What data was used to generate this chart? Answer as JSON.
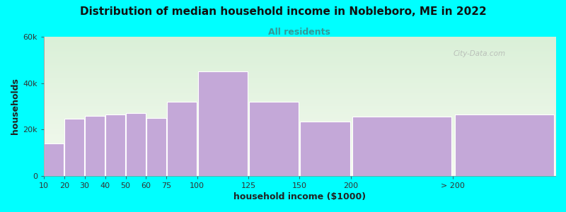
{
  "title": "Distribution of median household income in Nobleboro, ME in 2022",
  "subtitle": "All residents",
  "xlabel": "household income ($1000)",
  "ylabel": "households",
  "background_color": "#00FFFF",
  "plot_bg_gradient_top": "#daf0d8",
  "plot_bg_gradient_bottom": "#f5faf0",
  "bar_color": "#c4a8d8",
  "bar_edge_color": "#c4a8d8",
  "watermark": "City-Data.com",
  "categories": [
    "10",
    "20",
    "30",
    "40",
    "50",
    "60",
    "75",
    "100",
    "125",
    "150",
    "200",
    "> 200"
  ],
  "widths": [
    10,
    10,
    10,
    10,
    10,
    10,
    15,
    25,
    25,
    25,
    50,
    50
  ],
  "values": [
    14000,
    24500,
    26000,
    26500,
    27000,
    25000,
    32000,
    45000,
    32000,
    23500,
    25500,
    26500
  ],
  "ylim": [
    0,
    60000
  ],
  "yticks": [
    0,
    20000,
    40000,
    60000
  ],
  "ytick_labels": [
    "0",
    "20k",
    "40k",
    "60k"
  ],
  "title_fontsize": 11,
  "subtitle_fontsize": 9,
  "axis_label_fontsize": 9,
  "tick_fontsize": 8
}
